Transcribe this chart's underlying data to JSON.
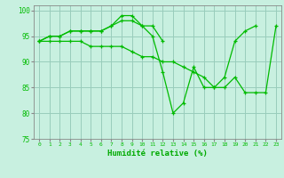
{
  "background_color": "#c8f0e0",
  "grid_color": "#99ccbb",
  "line_color": "#00bb00",
  "xlabel": "Humidité relative (%)",
  "xlabel_color": "#00aa00",
  "ylim": [
    75,
    101
  ],
  "xlim": [
    -0.5,
    23.5
  ],
  "yticks": [
    75,
    80,
    85,
    90,
    95,
    100
  ],
  "xticks": [
    0,
    1,
    2,
    3,
    4,
    5,
    6,
    7,
    8,
    9,
    10,
    11,
    12,
    13,
    14,
    15,
    16,
    17,
    18,
    19,
    20,
    21,
    22,
    23
  ],
  "series": [
    [
      94,
      95,
      95,
      96,
      96,
      96,
      96,
      97,
      99,
      99,
      97,
      97,
      94,
      null,
      null,
      null,
      null,
      null,
      null,
      null,
      null,
      null,
      null,
      null
    ],
    [
      94,
      95,
      95,
      96,
      96,
      96,
      96,
      97,
      98,
      98,
      97,
      95,
      88,
      80,
      82,
      89,
      85,
      85,
      87,
      94,
      96,
      97,
      null,
      null
    ],
    [
      94,
      94,
      94,
      94,
      94,
      93,
      93,
      93,
      93,
      92,
      91,
      91,
      90,
      90,
      89,
      88,
      87,
      85,
      85,
      87,
      84,
      84,
      84,
      97
    ]
  ]
}
